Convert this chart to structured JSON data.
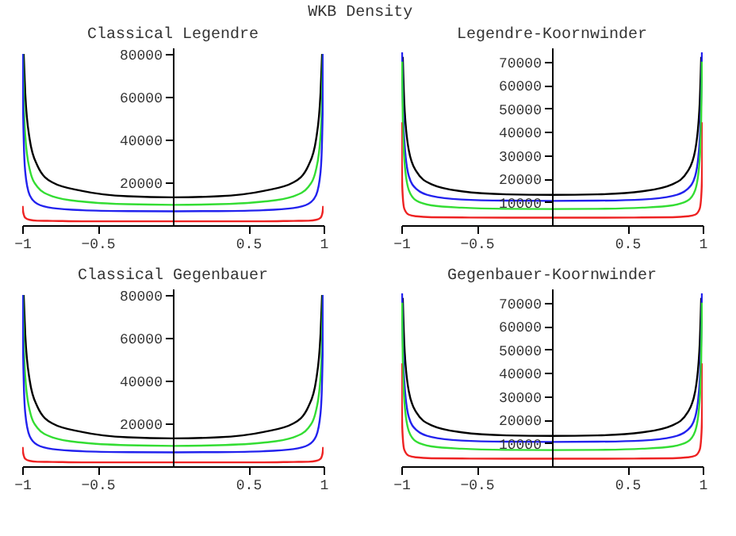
{
  "chart_data": [
    {
      "type": "line",
      "title": "Classical Legendre",
      "annotations": [
        "WKB Density"
      ],
      "xlim": [
        -1,
        1
      ],
      "xticks": [
        -1,
        -0.5,
        0.5,
        1
      ],
      "ylim": [
        0,
        83000
      ],
      "yticks": [
        20000,
        40000,
        60000,
        80000
      ],
      "x": [
        -0.997,
        -0.995,
        -0.99,
        -0.98,
        -0.95,
        -0.9,
        -0.8,
        -0.6,
        -0.3,
        0,
        0.3,
        0.6,
        0.8,
        0.9,
        0.95,
        0.98,
        0.99,
        0.995,
        0.997
      ],
      "series": [
        {
          "color": "#000000",
          "values": [
            null,
            null,
            80000,
            62000,
            40000,
            28000,
            20000,
            16000,
            13500,
            13000,
            13500,
            16000,
            20000,
            28000,
            40000,
            62000,
            80000,
            null,
            null
          ]
        },
        {
          "color": "#33dd33",
          "values": [
            null,
            80000,
            60000,
            42000,
            26000,
            18000,
            13500,
            11000,
            9800,
            9500,
            9800,
            11000,
            13500,
            18000,
            26000,
            42000,
            60000,
            80000,
            null
          ]
        },
        {
          "color": "#2222ee",
          "values": [
            80000,
            60000,
            40000,
            25000,
            14000,
            10000,
            8000,
            7000,
            6600,
            6500,
            6600,
            7000,
            8000,
            10000,
            14000,
            25000,
            40000,
            60000,
            80000
          ]
        },
        {
          "color": "#ee2222",
          "values": [
            9000,
            7000,
            5000,
            3500,
            2500,
            2100,
            2000,
            1800,
            1800,
            1800,
            1800,
            1800,
            2000,
            2100,
            2500,
            3500,
            5000,
            7000,
            9000
          ]
        }
      ]
    },
    {
      "type": "line",
      "title": "Legendre-Koornwinder",
      "xlim": [
        -1,
        1
      ],
      "xticks": [
        -1,
        -0.5,
        0.5,
        1
      ],
      "ylim": [
        0,
        76000
      ],
      "yticks": [
        10000,
        20000,
        30000,
        40000,
        50000,
        60000,
        70000
      ],
      "x": [
        -1,
        -0.995,
        -0.99,
        -0.98,
        -0.95,
        -0.9,
        -0.8,
        -0.6,
        -0.3,
        0,
        0.3,
        0.6,
        0.8,
        0.9,
        0.95,
        0.98,
        0.99,
        0.995,
        1
      ],
      "series": [
        {
          "color": "#000000",
          "values": [
            null,
            null,
            72000,
            52000,
            32000,
            23000,
            17500,
            14500,
            13200,
            13000,
            13200,
            14500,
            17500,
            23000,
            32000,
            52000,
            72000,
            null,
            null
          ]
        },
        {
          "color": "#2222ee",
          "values": [
            null,
            74000,
            55000,
            36000,
            21000,
            15500,
            12500,
            11000,
            10500,
            10400,
            10500,
            11000,
            12500,
            15500,
            21000,
            36000,
            55000,
            74000,
            null
          ]
        },
        {
          "color": "#33dd33",
          "values": [
            null,
            70000,
            45000,
            28000,
            15000,
            10500,
            8500,
            7500,
            7000,
            6900,
            7000,
            7500,
            8500,
            10500,
            15000,
            28000,
            45000,
            70000,
            null
          ]
        },
        {
          "color": "#ee2222",
          "values": [
            44000,
            20000,
            12000,
            7000,
            4500,
            3800,
            3400,
            3300,
            3200,
            3200,
            3200,
            3300,
            3400,
            3800,
            4500,
            7000,
            12000,
            20000,
            44000
          ]
        }
      ]
    },
    {
      "type": "line",
      "title": "Classical  Gegenbauer",
      "xlim": [
        -1,
        1
      ],
      "xticks": [
        -1,
        -0.5,
        0.5,
        1
      ],
      "ylim": [
        0,
        83000
      ],
      "yticks": [
        20000,
        40000,
        60000,
        80000
      ],
      "x": [
        -0.997,
        -0.995,
        -0.99,
        -0.98,
        -0.95,
        -0.9,
        -0.8,
        -0.6,
        -0.3,
        0,
        0.3,
        0.6,
        0.8,
        0.9,
        0.95,
        0.98,
        0.99,
        0.995,
        0.997
      ],
      "series": [
        {
          "color": "#000000",
          "values": [
            null,
            null,
            80000,
            62000,
            40000,
            28000,
            20000,
            16000,
            13500,
            13000,
            13500,
            16000,
            20000,
            28000,
            40000,
            62000,
            80000,
            null,
            null
          ]
        },
        {
          "color": "#33dd33",
          "values": [
            null,
            80000,
            60000,
            42000,
            26000,
            18000,
            13500,
            11000,
            9800,
            9500,
            9800,
            11000,
            13500,
            18000,
            26000,
            42000,
            60000,
            80000,
            null
          ]
        },
        {
          "color": "#2222ee",
          "values": [
            80000,
            60000,
            40000,
            25000,
            14000,
            10000,
            8000,
            7000,
            6600,
            6500,
            6600,
            7000,
            8000,
            10000,
            14000,
            25000,
            40000,
            60000,
            80000
          ]
        },
        {
          "color": "#ee2222",
          "values": [
            9000,
            7000,
            5000,
            3500,
            2500,
            2100,
            2000,
            1800,
            1800,
            1800,
            1800,
            1800,
            2000,
            2100,
            2500,
            3500,
            5000,
            7000,
            9000
          ]
        }
      ]
    },
    {
      "type": "line",
      "title": "Gegenbauer-Koornwinder",
      "xlim": [
        -1,
        1
      ],
      "xticks": [
        -1,
        -0.5,
        0.5,
        1
      ],
      "ylim": [
        0,
        76000
      ],
      "yticks": [
        10000,
        20000,
        30000,
        40000,
        50000,
        60000,
        70000
      ],
      "x": [
        -1,
        -0.995,
        -0.99,
        -0.98,
        -0.95,
        -0.9,
        -0.8,
        -0.6,
        -0.3,
        0,
        0.3,
        0.6,
        0.8,
        0.9,
        0.95,
        0.98,
        0.99,
        0.995,
        1
      ],
      "series": [
        {
          "color": "#000000",
          "values": [
            null,
            null,
            72000,
            52000,
            32000,
            23000,
            17500,
            14500,
            13200,
            13000,
            13200,
            14500,
            17500,
            23000,
            32000,
            52000,
            72000,
            null,
            null
          ]
        },
        {
          "color": "#2222ee",
          "values": [
            null,
            74000,
            55000,
            36000,
            21000,
            15500,
            12500,
            11000,
            10500,
            10400,
            10500,
            11000,
            12500,
            15500,
            21000,
            36000,
            55000,
            74000,
            null
          ]
        },
        {
          "color": "#33dd33",
          "values": [
            null,
            70000,
            45000,
            28000,
            15000,
            10500,
            8500,
            7500,
            7000,
            6900,
            7000,
            7500,
            8500,
            10500,
            15000,
            28000,
            45000,
            70000,
            null
          ]
        },
        {
          "color": "#ee2222",
          "values": [
            44000,
            20000,
            12000,
            7000,
            4500,
            3800,
            3400,
            3300,
            3200,
            3200,
            3200,
            3300,
            3400,
            3800,
            4500,
            7000,
            12000,
            20000,
            44000
          ]
        }
      ]
    }
  ]
}
